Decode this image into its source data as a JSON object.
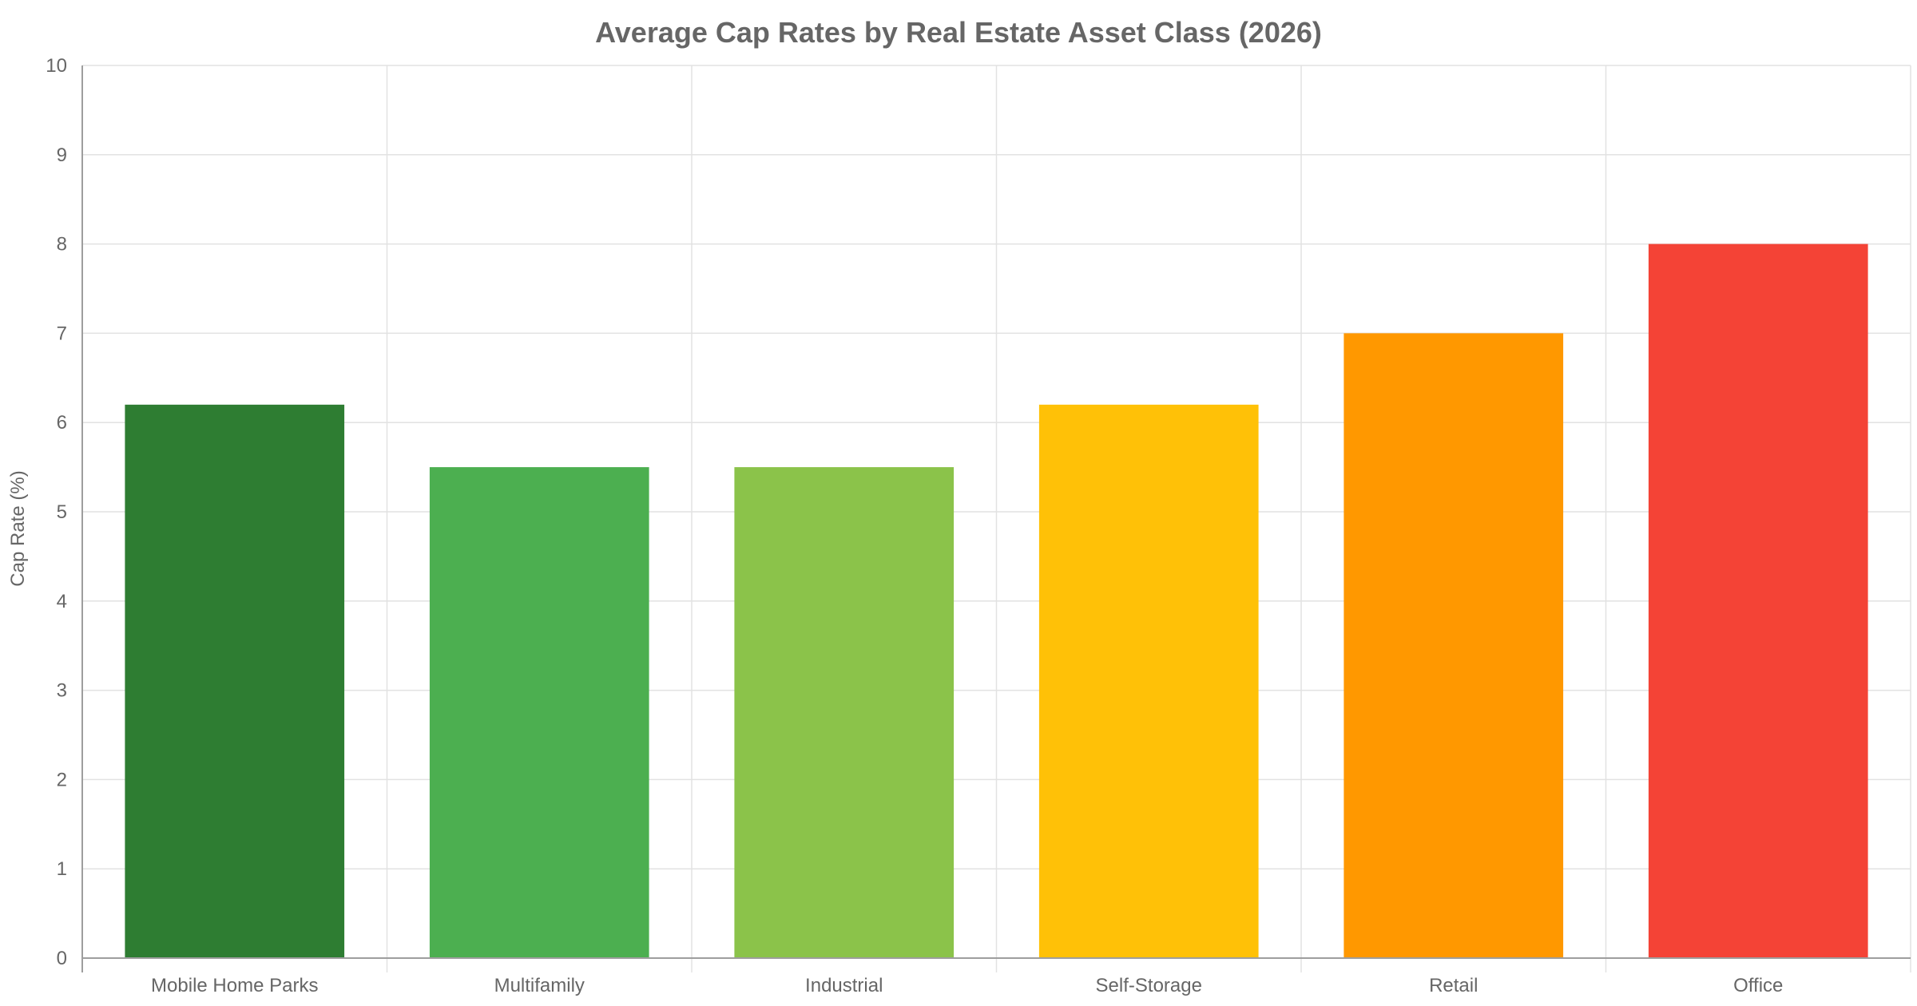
{
  "chart_data": {
    "type": "bar",
    "title": "Average Cap Rates by Real Estate Asset Class (2026)",
    "xlabel": "",
    "ylabel": "Cap Rate (%)",
    "ylim": [
      0,
      10
    ],
    "yticks": [
      "0",
      "1",
      "2",
      "3",
      "4",
      "5",
      "6",
      "7",
      "8",
      "9",
      "10"
    ],
    "categories": [
      "Mobile Home Parks",
      "Multifamily",
      "Industrial",
      "Self-Storage",
      "Retail",
      "Office"
    ],
    "values": [
      6.2,
      5.5,
      5.5,
      6.2,
      7.0,
      8.0
    ],
    "colors": [
      "#2e7d32",
      "#4caf50",
      "#8bc34a",
      "#ffc107",
      "#ff9800",
      "#f44336"
    ],
    "grid": true,
    "legend": "none"
  }
}
